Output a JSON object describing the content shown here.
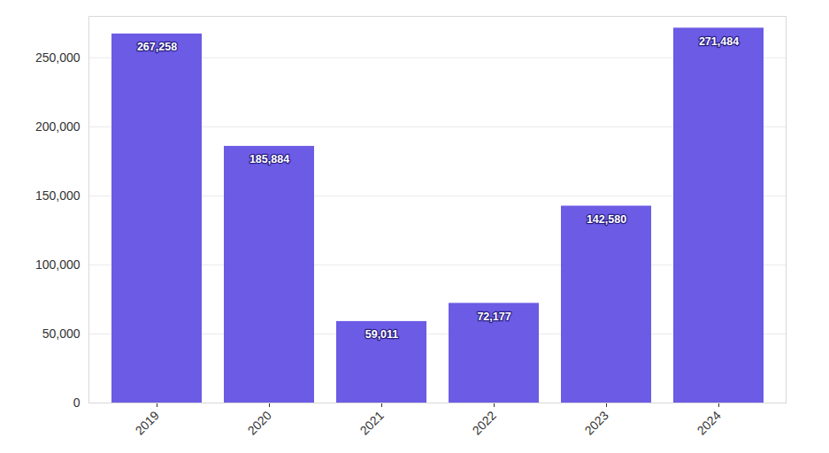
{
  "chart_data": {
    "type": "bar",
    "categories": [
      "2019",
      "2020",
      "2021",
      "2022",
      "2023",
      "2024"
    ],
    "values": [
      267258,
      185884,
      59011,
      72177,
      142580,
      271484
    ],
    "value_labels": [
      "267,258",
      "185,884",
      "59,011",
      "72,177",
      "142,580",
      "271,484"
    ],
    "color": "#6352e4",
    "ylim": [
      0,
      280000
    ],
    "yticks": [
      0,
      {
        "value": 50000,
        "label": "50,000"
      },
      {
        "value": 100000,
        "label": "100,000"
      },
      {
        "value": 150000,
        "label": "150,000"
      },
      {
        "value": 200000,
        "label": "200,000"
      },
      {
        "value": 250000,
        "label": "250,000"
      }
    ],
    "grid": true,
    "data_labels": true
  }
}
